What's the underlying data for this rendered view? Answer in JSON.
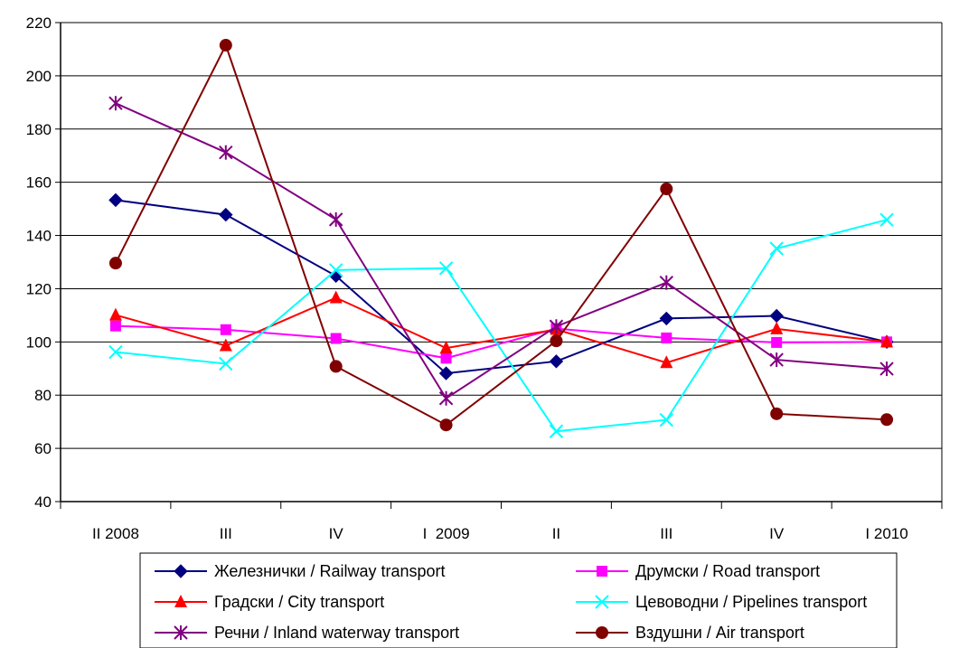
{
  "chart_data": {
    "type": "line",
    "title": "",
    "xlabel": "",
    "ylabel": "",
    "categories": [
      "II 2008",
      "III",
      "IV",
      "I  2009",
      "II",
      "III",
      "IV",
      "I 2010"
    ],
    "ylim": [
      40,
      220
    ],
    "yticks": [
      40,
      60,
      80,
      100,
      120,
      140,
      160,
      180,
      200,
      220
    ],
    "grid": true,
    "legend_position": "bottom",
    "series": [
      {
        "name": "Железнички / Railway transport",
        "color": "#000080",
        "marker": "diamond",
        "values": [
          153.3,
          147.8,
          124.8,
          88.2,
          92.7,
          108.8,
          109.8,
          100.0
        ]
      },
      {
        "name": "Друмски / Road transport",
        "color": "#ff00ff",
        "marker": "square",
        "values": [
          106.0,
          104.6,
          101.3,
          93.9,
          105.0,
          101.5,
          99.8,
          100.0
        ]
      },
      {
        "name": "Градски / City transport",
        "color": "#ff0000",
        "marker": "triangle",
        "values": [
          110.1,
          98.6,
          116.6,
          97.7,
          104.7,
          92.2,
          104.9,
          100.0
        ]
      },
      {
        "name": "Цевоводни / Pipelines transport",
        "color": "#00ffff",
        "marker": "x",
        "values": [
          96.2,
          91.8,
          127.0,
          127.7,
          66.4,
          70.7,
          135.1,
          145.9
        ]
      },
      {
        "name": "Речни / Inland waterway transport",
        "color": "#800080",
        "marker": "asterisk",
        "values": [
          189.7,
          171.2,
          146.0,
          78.8,
          105.8,
          122.3,
          93.3,
          89.9
        ]
      },
      {
        "name": "Вздушни / Air transport",
        "color": "#800000",
        "marker": "circle",
        "values": [
          129.6,
          211.5,
          90.8,
          68.8,
          100.4,
          157.5,
          73.0,
          70.8
        ]
      }
    ]
  }
}
